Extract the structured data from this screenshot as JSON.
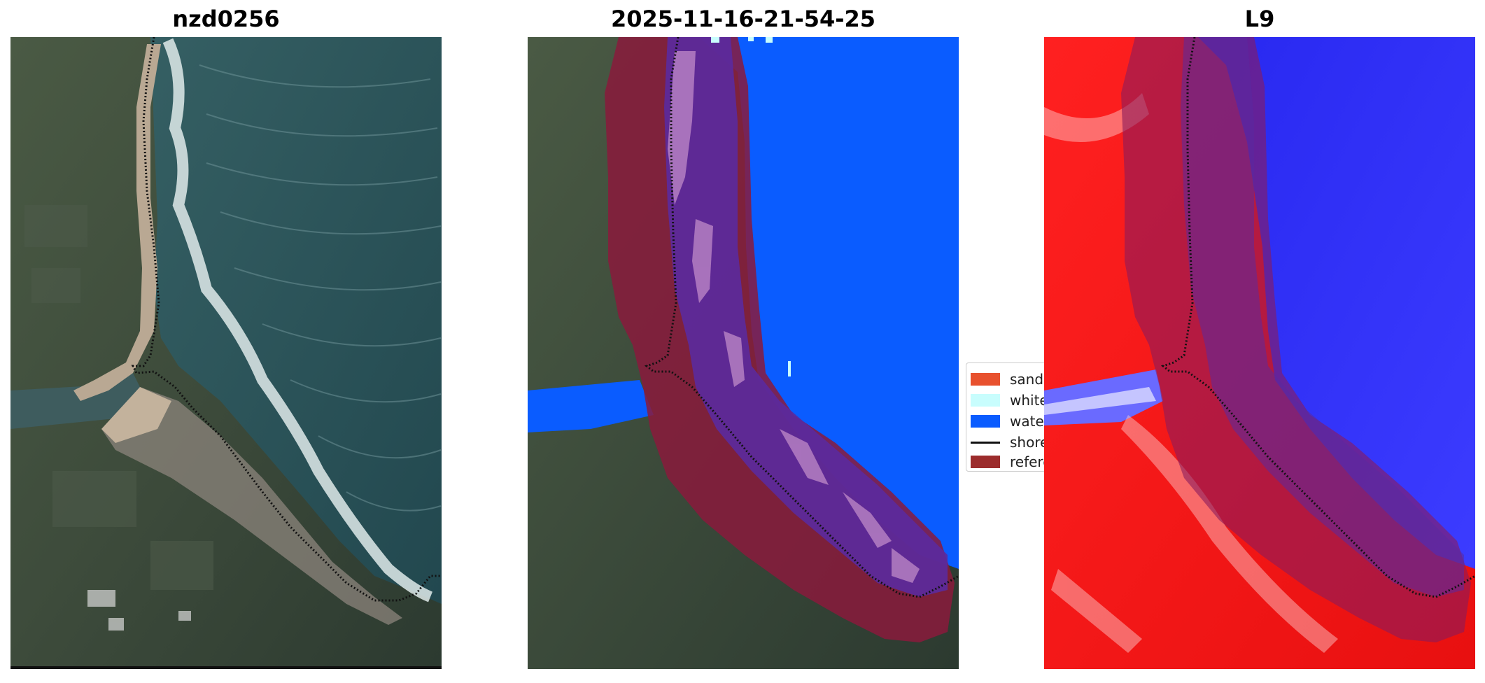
{
  "panels": [
    {
      "title": "nzd0256"
    },
    {
      "title": "2025-11-16-21-54-25"
    },
    {
      "title": "L9"
    }
  ],
  "legend": {
    "items": [
      {
        "label": "sand",
        "color": "#e8512e",
        "kind": "patch"
      },
      {
        "label": "whitewater",
        "color": "#c8fdfd",
        "kind": "patch"
      },
      {
        "label": "water",
        "color": "#0a5cff",
        "kind": "patch"
      },
      {
        "label": "shoreline",
        "color": "#111111",
        "kind": "line"
      },
      {
        "label": "reference",
        "color": "#9c2c2c",
        "kind": "patch"
      }
    ]
  },
  "colors": {
    "ocean": "#2f5e62",
    "land": "#3f4f3c",
    "beach": "#b7a58f",
    "water_class": "#0a5cff",
    "buffer": "#8a1a3c",
    "score_red": "#ff1010",
    "score_blue": "#1414e8"
  }
}
